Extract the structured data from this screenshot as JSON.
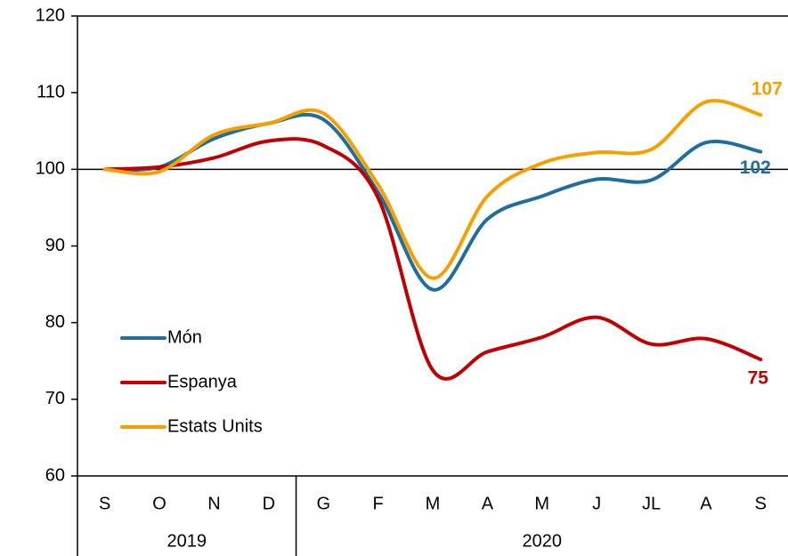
{
  "chart_data": {
    "type": "line",
    "categories": [
      "S",
      "O",
      "N",
      "D",
      "G",
      "F",
      "M",
      "A",
      "M",
      "J",
      "JL",
      "A",
      "S"
    ],
    "groups": [
      {
        "label": "2019",
        "count": 4
      },
      {
        "label": "2020",
        "count": 9
      }
    ],
    "series": [
      {
        "name": "Món",
        "color": "#1f6e9c",
        "values": [
          100,
          100.3,
          104,
          106,
          106.5,
          97,
          84.3,
          93.5,
          96.5,
          98.7,
          98.6,
          103.5,
          102.3
        ],
        "value_labels": [
          null,
          null,
          null,
          null,
          null,
          null,
          null,
          null,
          null,
          null,
          null,
          null,
          "102"
        ]
      },
      {
        "name": "Espanya",
        "color": "#c00000",
        "values": [
          100,
          100.3,
          101.5,
          103.7,
          103.1,
          96.3,
          73.8,
          76.2,
          78.1,
          80.7,
          77.2,
          77.9,
          75.2
        ],
        "value_labels": [
          null,
          null,
          null,
          null,
          null,
          null,
          null,
          null,
          null,
          null,
          null,
          null,
          "75"
        ]
      },
      {
        "name": "Estats Units",
        "color": "#f5a000",
        "values": [
          100,
          99.7,
          104.5,
          106,
          107.3,
          98,
          85.8,
          96.5,
          100.8,
          102.2,
          102.6,
          108.8,
          107.1
        ],
        "value_labels": [
          null,
          null,
          null,
          null,
          null,
          null,
          null,
          null,
          null,
          null,
          null,
          null,
          "107"
        ]
      }
    ],
    "reference_line": 100,
    "ylim": [
      60,
      120
    ],
    "yticks": [
      60,
      70,
      80,
      90,
      100,
      110,
      120
    ],
    "legend": "lower left"
  }
}
